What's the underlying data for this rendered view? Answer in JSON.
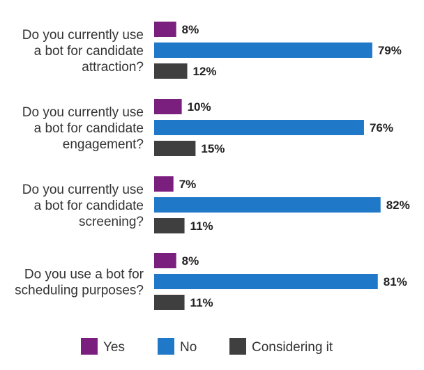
{
  "chart_data": {
    "type": "bar",
    "orientation": "horizontal",
    "categories": [
      [
        "Do you currently use",
        "a bot for candidate",
        "attraction?"
      ],
      [
        "Do you currently use",
        "a bot for candidate",
        "engagement?"
      ],
      [
        "Do you currently use",
        "a bot for candidate",
        "screening?"
      ],
      [
        "Do you use a bot for",
        "scheduling purposes?"
      ]
    ],
    "series": [
      {
        "name": "Yes",
        "color": "#7b1f7e",
        "values": [
          8,
          10,
          7,
          8
        ]
      },
      {
        "name": "No",
        "color": "#1f78c8",
        "values": [
          79,
          76,
          82,
          81
        ]
      },
      {
        "name": "Considering it",
        "color": "#3f3f3f",
        "values": [
          12,
          15,
          11,
          11
        ]
      }
    ],
    "value_suffix": "%",
    "xlim": [
      0,
      100
    ],
    "legend_position": "bottom",
    "grid": false
  }
}
